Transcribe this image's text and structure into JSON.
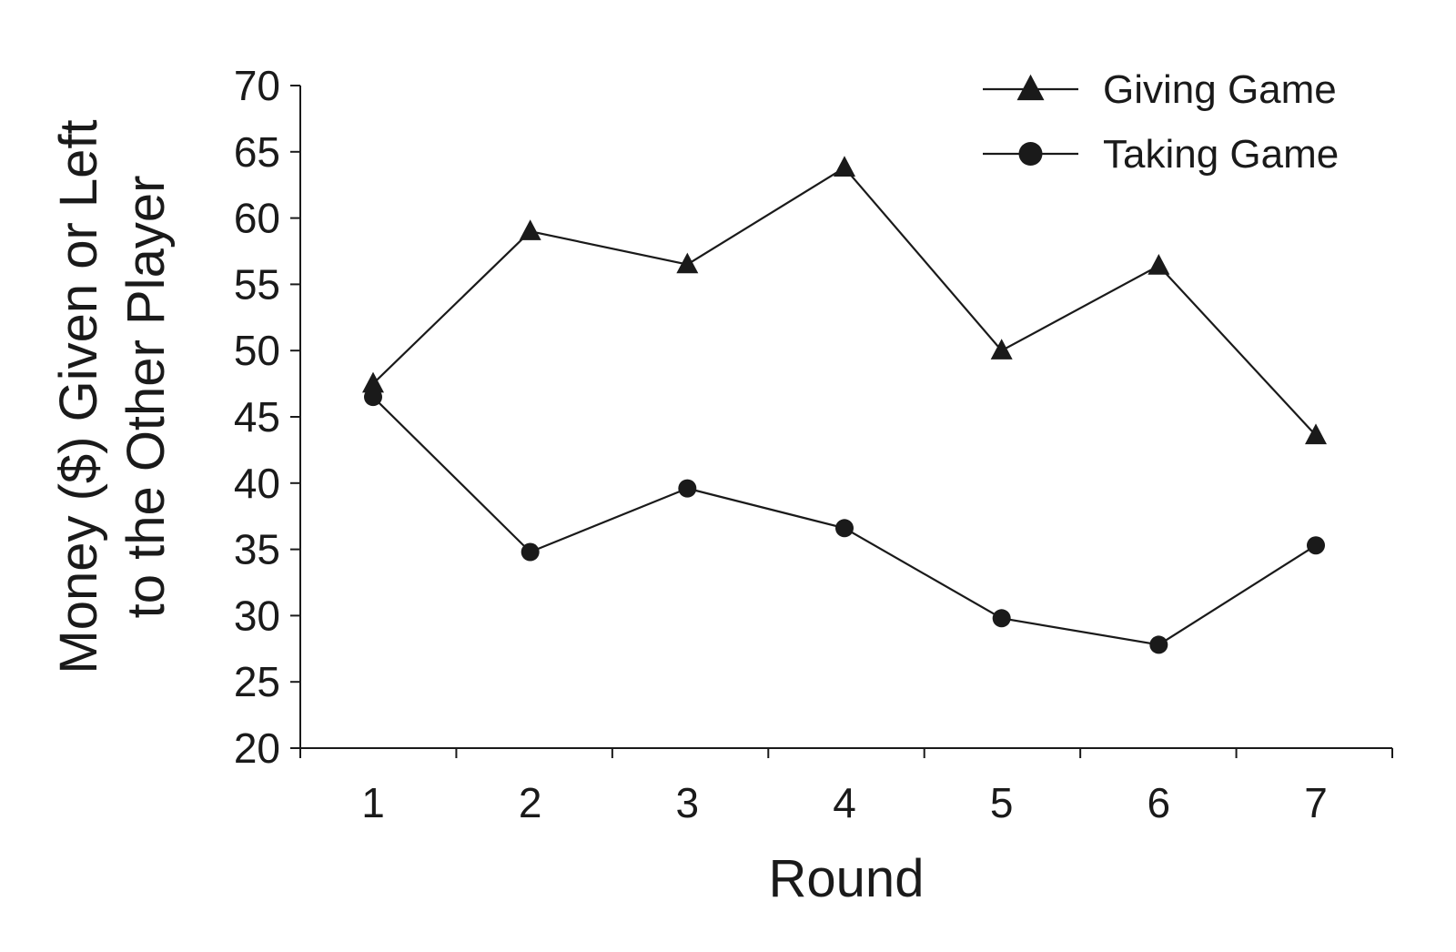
{
  "chart_data": {
    "type": "line",
    "title": "",
    "xlabel": "Round",
    "ylabel_lines": [
      "Money ($) Given or Left",
      "to the Other Player"
    ],
    "x": [
      1,
      2,
      3,
      4,
      5,
      6,
      7
    ],
    "x_tick_labels": [
      "1",
      "2",
      "3",
      "4",
      "5",
      "6",
      "7"
    ],
    "ylim": [
      20,
      70
    ],
    "y_ticks": [
      20,
      25,
      30,
      35,
      40,
      45,
      50,
      55,
      60,
      65,
      70
    ],
    "y_tick_labels": [
      "20",
      "25",
      "30",
      "35",
      "40",
      "45",
      "50",
      "55",
      "60",
      "65",
      "70"
    ],
    "grid": false,
    "legend_position": "top-right",
    "series": [
      {
        "name": "Giving Game",
        "marker": "triangle",
        "color": "#1a1a1a",
        "values": [
          47.5,
          59.0,
          56.5,
          63.8,
          50.0,
          56.4,
          43.6
        ]
      },
      {
        "name": "Taking Game",
        "marker": "circle",
        "color": "#1a1a1a",
        "values": [
          46.5,
          34.8,
          39.6,
          36.6,
          29.8,
          27.8,
          35.3
        ]
      }
    ]
  }
}
